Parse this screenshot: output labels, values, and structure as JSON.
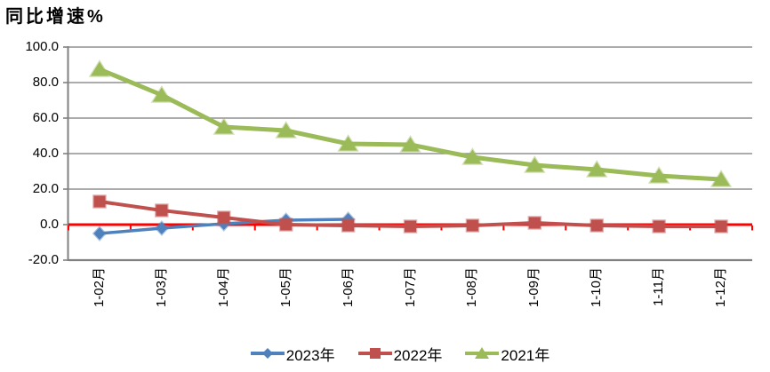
{
  "chart_data": {
    "type": "line",
    "title": "同比增速%",
    "categories": [
      "1-02月",
      "1-03月",
      "1-04月",
      "1-05月",
      "1-06月",
      "1-07月",
      "1-08月",
      "1-09月",
      "1-10月",
      "1-11月",
      "1-12月"
    ],
    "series": [
      {
        "name": "2023年",
        "color": "#4F81BD",
        "marker": "diamond",
        "values": [
          -5,
          -2,
          0.5,
          2.5,
          3,
          null,
          null,
          null,
          null,
          null,
          null
        ]
      },
      {
        "name": "2022年",
        "color": "#C0504D",
        "marker": "square",
        "values": [
          13,
          8,
          4,
          0,
          -0.5,
          -1,
          -0.5,
          1,
          -0.5,
          -1,
          -1
        ]
      },
      {
        "name": "2021年",
        "color": "#9BBB59",
        "marker": "triangle",
        "values": [
          87.5,
          73,
          55,
          53,
          45.5,
          45,
          38,
          33.5,
          31,
          27.5,
          25.5
        ]
      }
    ],
    "ylim": [
      -20,
      100
    ],
    "ytick_interval": 20,
    "ytick_format_decimals": 1,
    "grid": "horizontal",
    "legend_position": "bottom",
    "colors": {
      "zero_axis_line": "#FF0000",
      "gridline": "#919191",
      "axis_line": "#808080",
      "text": "#000000",
      "background": "#FFFFFF"
    }
  }
}
